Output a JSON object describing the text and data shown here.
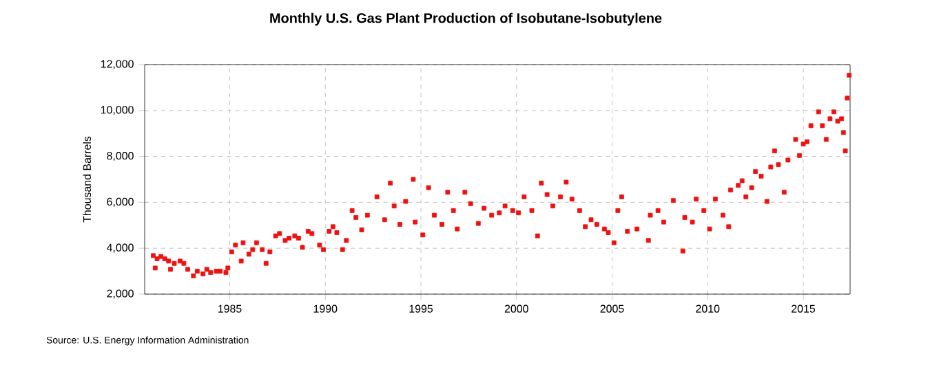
{
  "chart_data": {
    "type": "scatter",
    "title": "Monthly U.S. Gas Plant Production of Isobutane-Isobutylene",
    "ylabel": "Thousand Barrels",
    "annotations": [
      "Source: U.S. Energy Information Administration"
    ],
    "x": [
      1981.0,
      1981.1,
      1981.2,
      1981.4,
      1981.6,
      1981.8,
      1981.9,
      1982.1,
      1982.4,
      1982.6,
      1982.8,
      1983.1,
      1983.3,
      1983.6,
      1983.8,
      1984.0,
      1984.3,
      1984.5,
      1984.8,
      1984.9,
      1985.1,
      1985.3,
      1985.6,
      1985.7,
      1986.0,
      1986.2,
      1986.4,
      1986.7,
      1986.9,
      1987.1,
      1987.4,
      1987.6,
      1987.9,
      1988.1,
      1988.4,
      1988.6,
      1988.8,
      1989.1,
      1989.3,
      1989.7,
      1989.9,
      1990.2,
      1990.4,
      1990.6,
      1990.9,
      1991.1,
      1991.4,
      1991.6,
      1991.9,
      1992.2,
      1992.7,
      1993.1,
      1993.4,
      1993.6,
      1993.9,
      1994.2,
      1994.6,
      1994.7,
      1995.1,
      1995.4,
      1995.7,
      1996.1,
      1996.4,
      1996.7,
      1996.9,
      1997.3,
      1997.6,
      1998.0,
      1998.3,
      1998.7,
      1999.1,
      1999.4,
      1999.8,
      2000.1,
      2000.4,
      2000.8,
      2001.1,
      2001.3,
      2001.6,
      2001.9,
      2002.3,
      2002.6,
      2002.9,
      2003.3,
      2003.6,
      2003.9,
      2004.2,
      2004.6,
      2004.8,
      2005.1,
      2005.3,
      2005.5,
      2005.8,
      2006.3,
      2006.9,
      2007.0,
      2007.4,
      2007.7,
      2008.2,
      2008.7,
      2008.8,
      2009.2,
      2009.4,
      2009.8,
      2010.1,
      2010.4,
      2010.8,
      2011.1,
      2011.2,
      2011.6,
      2011.8,
      2012.0,
      2012.3,
      2012.5,
      2012.8,
      2013.1,
      2013.3,
      2013.5,
      2013.7,
      2014.0,
      2014.2,
      2014.6,
      2014.8,
      2015.0,
      2015.2,
      2015.4,
      2015.8,
      2016.0,
      2016.2,
      2016.4,
      2016.6,
      2016.8,
      2017.0,
      2017.1,
      2017.2,
      2017.3,
      2017.4
    ],
    "series": [
      {
        "color": "#ee1111",
        "values": [
          3680,
          3140,
          3540,
          3640,
          3540,
          3440,
          3080,
          3340,
          3440,
          3340,
          3080,
          2800,
          3000,
          2880,
          3080,
          2940,
          3000,
          3000,
          2940,
          3140,
          3840,
          4140,
          3440,
          4240,
          3740,
          3940,
          4240,
          3940,
          3340,
          3840,
          4540,
          4640,
          4340,
          4440,
          4540,
          4440,
          4040,
          4740,
          4640,
          4140,
          3940,
          4740,
          4940,
          4680,
          3940,
          4340,
          5640,
          5340,
          4800,
          5440,
          6240,
          5240,
          6840,
          5840,
          5040,
          6040,
          7000,
          5140,
          4580,
          6640,
          5440,
          5040,
          6440,
          5640,
          4840,
          6440,
          5940,
          5080,
          5740,
          5440,
          5540,
          5840,
          5640,
          5540,
          6240,
          5640,
          4540,
          6840,
          6340,
          5840,
          6240,
          6880,
          6140,
          5640,
          4940,
          5240,
          5040,
          4840,
          4680,
          4240,
          5640,
          6240,
          4740,
          4840,
          4340,
          5440,
          5640,
          5140,
          6080,
          3880,
          5340,
          5140,
          6140,
          5640,
          4840,
          6140,
          5440,
          4940,
          6540,
          6740,
          6940,
          6240,
          6640,
          7340,
          7140,
          6040,
          7540,
          8240,
          7640,
          6440,
          7840,
          8740,
          8040,
          8540,
          8640,
          9340,
          9940,
          9340,
          8740,
          9640,
          9940,
          9540,
          9640,
          9040,
          8240,
          10540,
          11540
        ]
      }
    ],
    "xlim": [
      1980.55,
      2017.45
    ],
    "ylim": [
      2000,
      12000
    ],
    "xticks": [
      1985,
      1990,
      1995,
      2000,
      2005,
      2010,
      2015
    ],
    "yticks": [
      {
        "value": 2000,
        "label": "2,000"
      },
      {
        "value": 4000,
        "label": "4,000"
      },
      {
        "value": 6000,
        "label": "6,000"
      },
      {
        "value": 8000,
        "label": "8,000"
      },
      {
        "value": 10000,
        "label": "10,000"
      },
      {
        "value": 12000,
        "label": "12,000"
      }
    ],
    "grid": true,
    "marker": "square"
  }
}
